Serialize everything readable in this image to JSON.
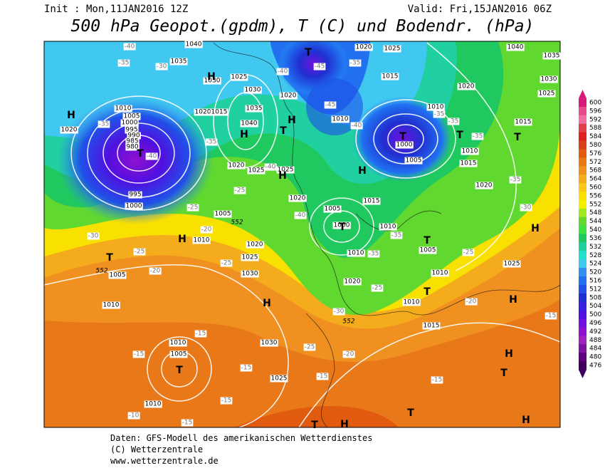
{
  "header": {
    "init": "Init : Mon,11JAN2016 12Z",
    "valid": "Valid: Fri,15JAN2016 06Z",
    "title": "500 hPa Geopot.(gpdm), T (C) und Bodendr. (hPa)"
  },
  "colorbar": {
    "labels": [
      600,
      596,
      592,
      588,
      584,
      580,
      576,
      572,
      568,
      564,
      560,
      556,
      552,
      548,
      544,
      540,
      536,
      532,
      528,
      524,
      520,
      516,
      512,
      508,
      504,
      500,
      496,
      492,
      488,
      484,
      480,
      476
    ],
    "colors": [
      "#d8187a",
      "#e84a8e",
      "#f070a0",
      "#e0404a",
      "#e02020",
      "#d84018",
      "#e05a10",
      "#e87818",
      "#f09020",
      "#f4ac1c",
      "#f8c818",
      "#f8e000",
      "#f0f000",
      "#a0e820",
      "#60d830",
      "#40e040",
      "#20c860",
      "#20d0a0",
      "#20e0d0",
      "#40c8f0",
      "#3090f0",
      "#2070f0",
      "#2050e8",
      "#2030d0",
      "#3820e0",
      "#5010e0",
      "#7010e0",
      "#9010d0",
      "#a020c0",
      "#8010a0",
      "#600080",
      "#400060"
    ]
  },
  "map": {
    "pressure": [
      "1010",
      "1005",
      "1000",
      "995",
      "990",
      "985",
      "980",
      "1040",
      "1035",
      "1030",
      "1025",
      "1030",
      "1035",
      "1040",
      "1020",
      "1015",
      "1020",
      "1025",
      "1025",
      "1020",
      "1005",
      "1010",
      "1020",
      "1025",
      "1030",
      "1005",
      "1010",
      "1030",
      "1010",
      "1005",
      "1025",
      "1010",
      "995",
      "1000",
      "1020",
      "1010",
      "1020",
      "1020",
      "1025",
      "1015",
      "1020",
      "1010",
      "1010",
      "1005",
      "1000",
      "1015",
      "1020",
      "1015",
      "1025",
      "1030",
      "1035",
      "1040",
      "1005",
      "1000",
      "1015",
      "1010",
      "1005",
      "1010",
      "1010",
      "1020",
      "1010",
      "1015",
      "1025"
    ],
    "temperature": [
      "-40",
      "-35",
      "-30",
      "-35",
      "-40",
      "-35",
      "-25",
      "-25",
      "-20",
      "-25",
      "-20",
      "-30",
      "-25",
      "-40",
      "-40",
      "-45",
      "-35",
      "-45",
      "-40",
      "-40",
      "-35",
      "-35",
      "-35",
      "-35",
      "-35",
      "-35",
      "-30",
      "-25",
      "-25",
      "-30",
      "-20",
      "-15",
      "-25",
      "-20",
      "-15",
      "-15",
      "-15",
      "-15",
      "-15",
      "-15",
      "-10",
      "-15"
    ],
    "height": [
      "552",
      "552",
      "552"
    ],
    "centers": [
      "H",
      "H",
      "H",
      "H",
      "H",
      "H",
      "H",
      "H",
      "H",
      "H",
      "H",
      "H",
      "H",
      "T",
      "T",
      "T",
      "T",
      "T",
      "T",
      "T",
      "T",
      "T",
      "T",
      "T",
      "T",
      "T",
      "T"
    ]
  },
  "footer": {
    "lines": [
      "Daten: GFS-Modell des amerikanischen Wetterdienstes",
      "(C) Wetterzentrale",
      "www.wetterzentrale.de"
    ]
  }
}
